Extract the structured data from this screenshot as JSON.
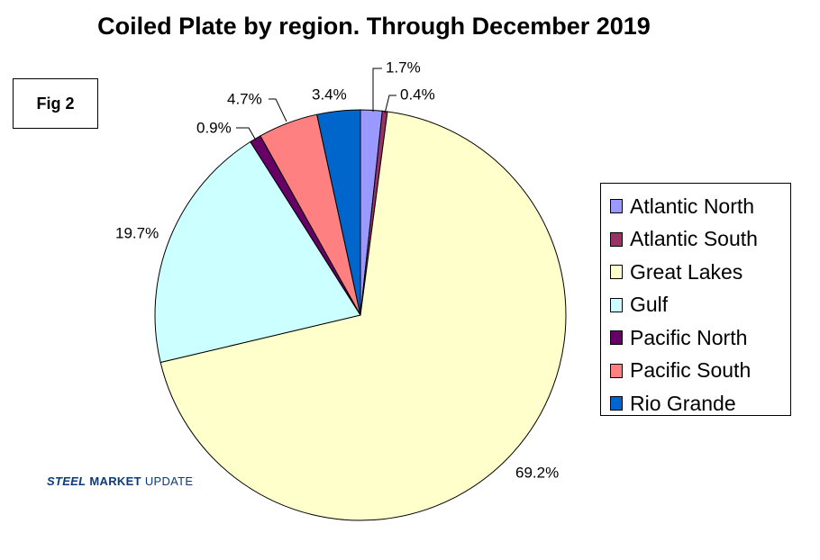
{
  "chart_data": {
    "type": "pie",
    "title": "Coiled Plate by region. Through December 2019",
    "slices": [
      {
        "name": "Atlantic North",
        "value": 1.7,
        "label": "1.7%",
        "color": "#9999ff"
      },
      {
        "name": "Atlantic South",
        "value": 0.4,
        "label": "0.4%",
        "color": "#993366"
      },
      {
        "name": "Great Lakes",
        "value": 69.2,
        "label": "69.2%",
        "color": "#ffffcc"
      },
      {
        "name": "Gulf",
        "value": 19.7,
        "label": "19.7%",
        "color": "#ccffff"
      },
      {
        "name": "Pacific North",
        "value": 0.9,
        "label": "0.9%",
        "color": "#660066"
      },
      {
        "name": "Pacific South",
        "value": 4.7,
        "label": "4.7%",
        "color": "#ff8080"
      },
      {
        "name": "Rio Grande",
        "value": 3.4,
        "label": "3.4%",
        "color": "#0066cc"
      }
    ]
  },
  "figure_tag": "Fig 2",
  "logo": {
    "steel": "STEEL",
    "market": "MARKET",
    "update": "UPDATE"
  }
}
